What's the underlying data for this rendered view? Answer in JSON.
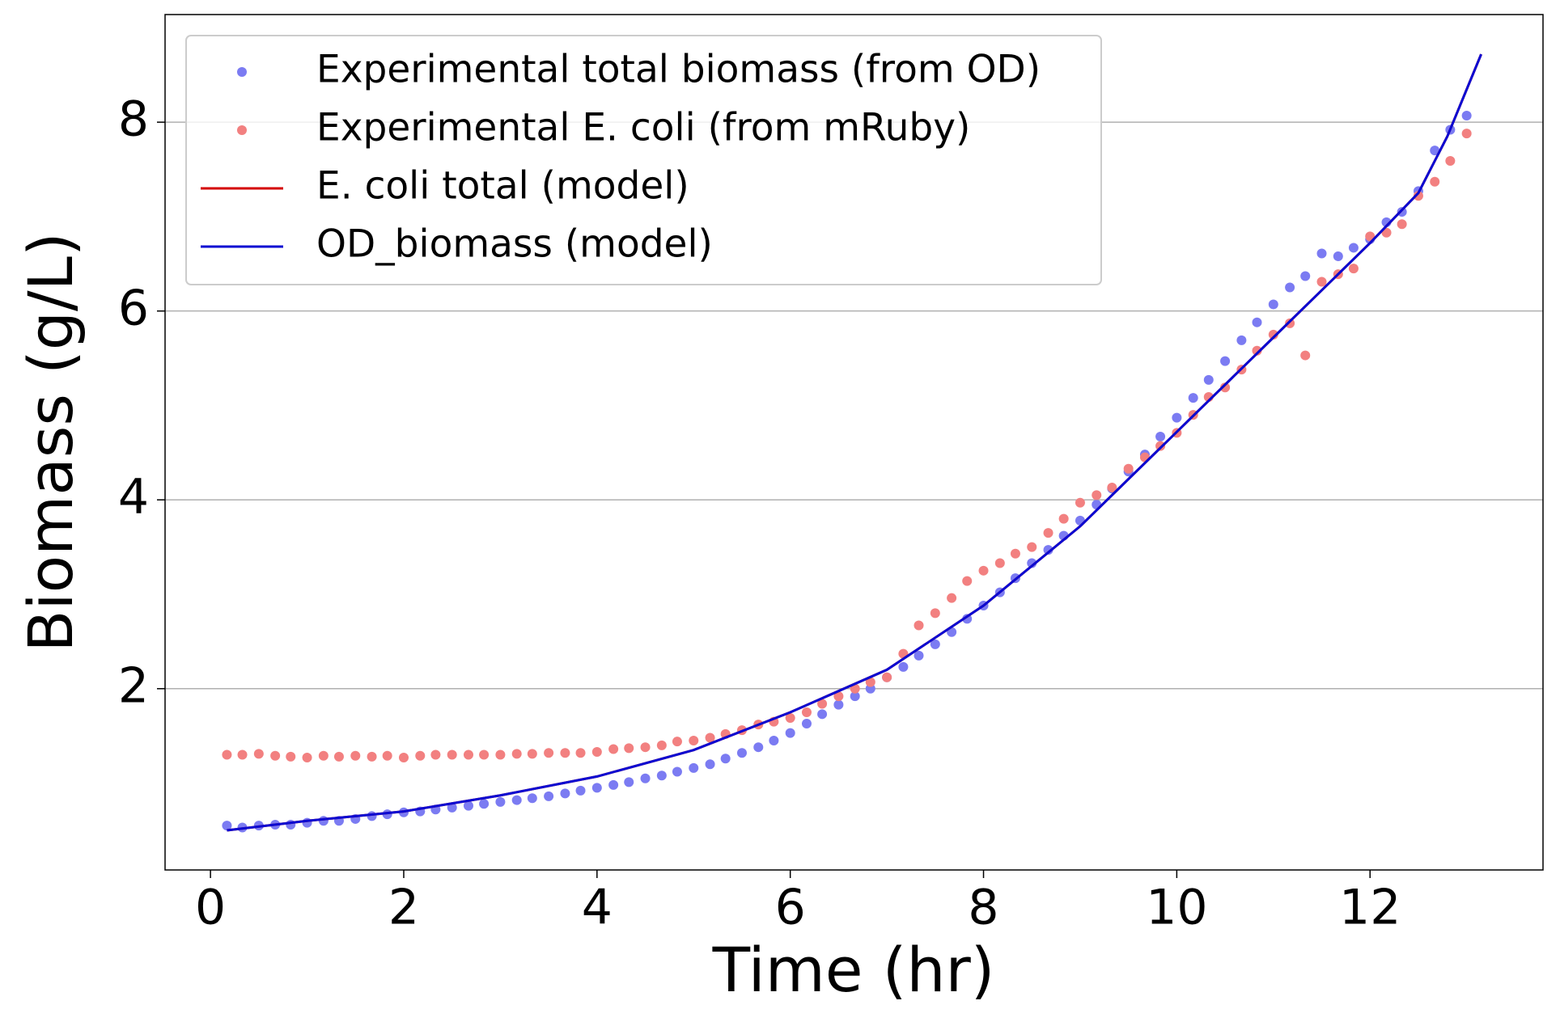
{
  "chart_data": {
    "type": "scatter",
    "xlabel": "Time (hr)",
    "ylabel": "Biomass (g/L)",
    "xlim": [
      -0.47,
      13.79
    ],
    "ylim": [
      0.08,
      9.14
    ],
    "xticks": [
      0,
      2,
      4,
      6,
      8,
      10,
      12
    ],
    "yticks": [
      2,
      4,
      6,
      8
    ],
    "grid": "y",
    "legend": "upper left",
    "x": [
      0.17,
      0.33,
      0.5,
      0.67,
      0.83,
      1.0,
      1.17,
      1.33,
      1.5,
      1.67,
      1.83,
      2.0,
      2.17,
      2.33,
      2.5,
      2.67,
      2.83,
      3.0,
      3.17,
      3.33,
      3.5,
      3.67,
      3.83,
      4.0,
      4.17,
      4.33,
      4.5,
      4.67,
      4.83,
      5.0,
      5.17,
      5.33,
      5.5,
      5.67,
      5.83,
      6.0,
      6.17,
      6.33,
      6.5,
      6.67,
      6.83,
      7.0,
      7.17,
      7.33,
      7.5,
      7.67,
      7.83,
      8.0,
      8.17,
      8.33,
      8.5,
      8.67,
      8.83,
      9.0,
      9.17,
      9.33,
      9.5,
      9.67,
      9.83,
      10.0,
      10.17,
      10.33,
      10.5,
      10.67,
      10.83,
      11.0,
      11.17,
      11.33,
      11.5,
      11.67,
      11.83,
      12.0,
      12.17,
      12.33,
      12.5,
      12.67,
      12.83,
      13.0
    ],
    "series": [
      {
        "name": "Experimental total biomass (from OD)",
        "kind": "scatter",
        "color": "#7b7bf2",
        "values": [
          0.55,
          0.53,
          0.55,
          0.56,
          0.56,
          0.58,
          0.6,
          0.6,
          0.62,
          0.65,
          0.67,
          0.69,
          0.7,
          0.72,
          0.74,
          0.76,
          0.78,
          0.8,
          0.82,
          0.84,
          0.86,
          0.89,
          0.92,
          0.95,
          0.98,
          1.01,
          1.05,
          1.08,
          1.12,
          1.16,
          1.2,
          1.26,
          1.32,
          1.38,
          1.45,
          1.53,
          1.63,
          1.73,
          1.83,
          1.92,
          2.0,
          2.12,
          2.23,
          2.35,
          2.47,
          2.6,
          2.74,
          2.88,
          3.02,
          3.17,
          3.33,
          3.47,
          3.62,
          3.78,
          3.95,
          4.12,
          4.3,
          4.48,
          4.67,
          4.87,
          5.08,
          5.27,
          5.47,
          5.69,
          5.88,
          6.07,
          6.25,
          6.37,
          6.61,
          6.58,
          6.67,
          6.76,
          6.94,
          7.05,
          7.27,
          7.7,
          7.92,
          8.07
        ]
      },
      {
        "name": "Experimental E. coli (from mRuby)",
        "kind": "scatter",
        "color": "#f28080",
        "values": [
          1.3,
          1.3,
          1.31,
          1.29,
          1.28,
          1.27,
          1.29,
          1.28,
          1.29,
          1.28,
          1.29,
          1.27,
          1.29,
          1.3,
          1.3,
          1.3,
          1.3,
          1.3,
          1.31,
          1.31,
          1.32,
          1.32,
          1.32,
          1.33,
          1.36,
          1.37,
          1.38,
          1.4,
          1.44,
          1.45,
          1.48,
          1.52,
          1.56,
          1.62,
          1.65,
          1.69,
          1.75,
          1.84,
          1.92,
          2.0,
          2.07,
          2.12,
          2.37,
          2.67,
          2.8,
          2.96,
          3.14,
          3.25,
          3.33,
          3.43,
          3.5,
          3.65,
          3.8,
          3.97,
          4.05,
          4.13,
          4.33,
          4.45,
          4.57,
          4.71,
          4.9,
          5.09,
          5.19,
          5.38,
          5.58,
          5.75,
          5.87,
          5.53,
          6.31,
          6.39,
          6.45,
          6.79,
          6.83,
          6.92,
          7.22,
          7.37,
          7.59,
          7.88
        ]
      },
      {
        "name": "E. coli total (model)",
        "kind": "line",
        "color": "#d40000",
        "x": [
          0.17,
          1,
          2,
          3,
          4,
          5,
          6,
          7,
          8,
          9,
          10,
          11,
          12,
          12.5,
          12.8,
          13.15
        ],
        "values": [
          0.5,
          0.6,
          0.7,
          0.87,
          1.07,
          1.35,
          1.75,
          2.2,
          2.88,
          3.72,
          4.72,
          5.72,
          6.72,
          7.25,
          7.85,
          8.72
        ]
      },
      {
        "name": "OD_biomass (model)",
        "kind": "line",
        "color": "#0a0ad2",
        "x": [
          0.17,
          1,
          2,
          3,
          4,
          5,
          6,
          7,
          8,
          9,
          10,
          11,
          12,
          12.5,
          12.8,
          13.15
        ],
        "values": [
          0.5,
          0.6,
          0.7,
          0.87,
          1.07,
          1.35,
          1.75,
          2.2,
          2.88,
          3.72,
          4.72,
          5.72,
          6.72,
          7.25,
          7.85,
          8.72
        ]
      }
    ]
  }
}
